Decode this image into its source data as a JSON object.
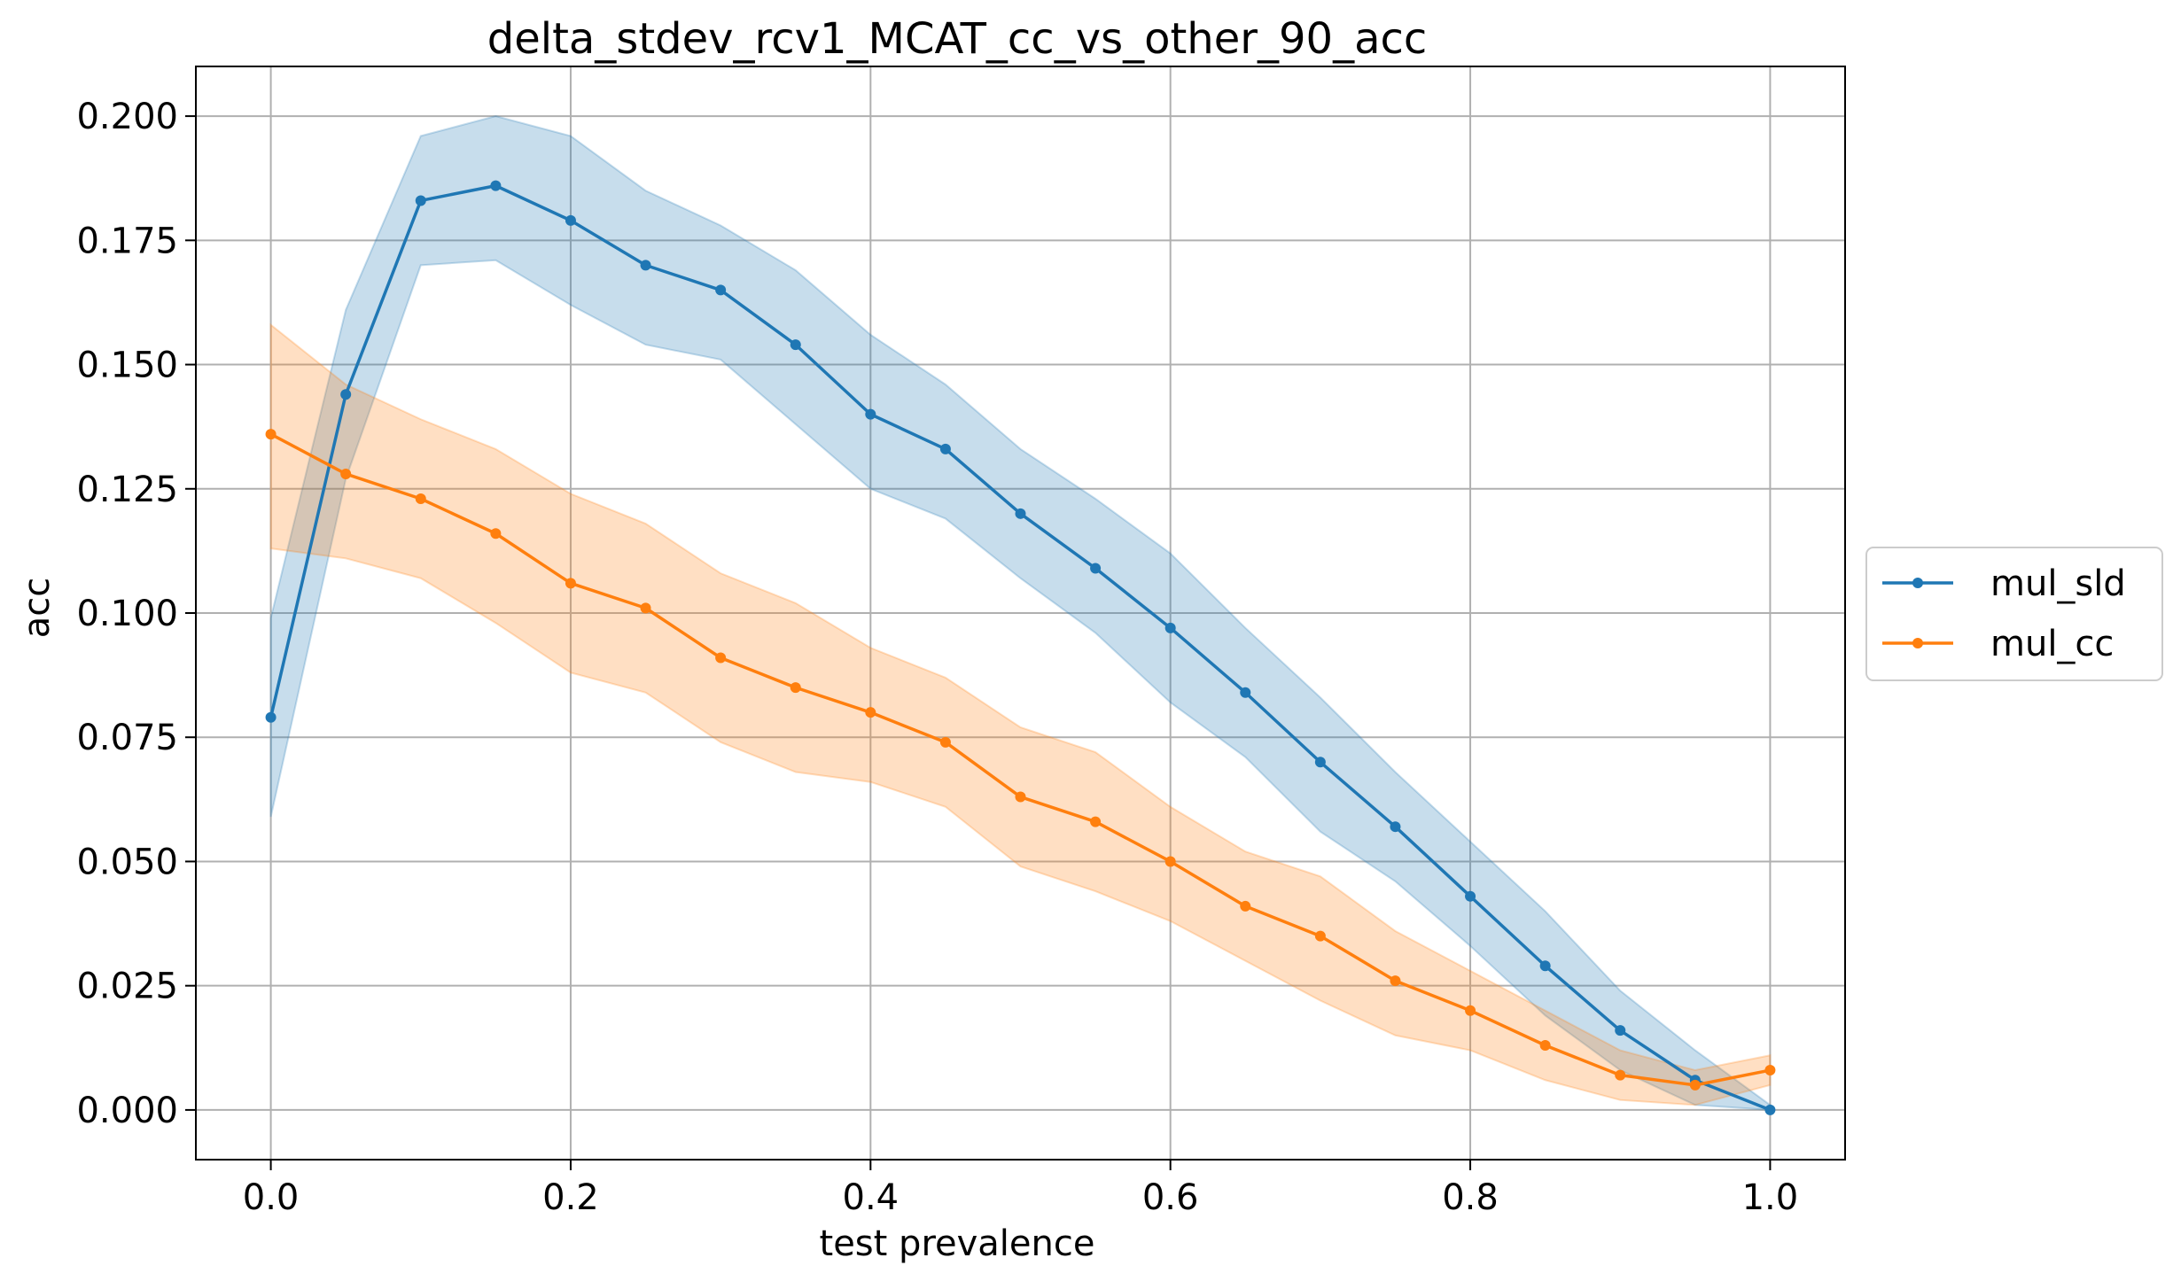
{
  "chart_data": {
    "type": "line",
    "title": "delta_stdev_rcv1_MCAT_cc_vs_other_90_acc",
    "xlabel": "test prevalence",
    "ylabel": "acc",
    "xlim": [
      -0.05,
      1.05
    ],
    "ylim": [
      -0.01,
      0.21
    ],
    "xticks": [
      0.0,
      0.2,
      0.4,
      0.6,
      0.8,
      1.0
    ],
    "xtick_labels": [
      "0.0",
      "0.2",
      "0.4",
      "0.6",
      "0.8",
      "1.0"
    ],
    "yticks": [
      0.0,
      0.025,
      0.05,
      0.075,
      0.1,
      0.125,
      0.15,
      0.175,
      0.2
    ],
    "ytick_labels": [
      "0.000",
      "0.025",
      "0.050",
      "0.075",
      "0.100",
      "0.125",
      "0.150",
      "0.175",
      "0.200"
    ],
    "grid": true,
    "legend_position": "right, outside",
    "x": [
      0.0,
      0.05,
      0.1,
      0.15,
      0.2,
      0.25,
      0.3,
      0.35,
      0.4,
      0.45,
      0.5,
      0.55,
      0.6,
      0.65,
      0.7,
      0.75,
      0.8,
      0.85,
      0.9,
      0.95,
      1.0
    ],
    "series": [
      {
        "name": "mul_sld",
        "color": "#1f77b4",
        "values": [
          0.079,
          0.144,
          0.183,
          0.186,
          0.179,
          0.17,
          0.165,
          0.154,
          0.14,
          0.133,
          0.12,
          0.109,
          0.097,
          0.084,
          0.07,
          0.057,
          0.043,
          0.029,
          0.016,
          0.006,
          0.0
        ],
        "band_upper": [
          0.099,
          0.161,
          0.196,
          0.2,
          0.196,
          0.185,
          0.178,
          0.169,
          0.156,
          0.146,
          0.133,
          0.123,
          0.112,
          0.097,
          0.083,
          0.068,
          0.054,
          0.04,
          0.024,
          0.012,
          0.001
        ],
        "band_lower": [
          0.059,
          0.127,
          0.17,
          0.171,
          0.162,
          0.154,
          0.151,
          0.138,
          0.125,
          0.119,
          0.107,
          0.096,
          0.082,
          0.071,
          0.056,
          0.046,
          0.033,
          0.019,
          0.008,
          0.001,
          0.0
        ]
      },
      {
        "name": "mul_cc",
        "color": "#ff7f0e",
        "values": [
          0.136,
          0.128,
          0.123,
          0.116,
          0.106,
          0.101,
          0.091,
          0.085,
          0.08,
          0.074,
          0.063,
          0.058,
          0.05,
          0.041,
          0.035,
          0.026,
          0.02,
          0.013,
          0.007,
          0.005,
          0.008
        ],
        "band_upper": [
          0.158,
          0.146,
          0.139,
          0.133,
          0.124,
          0.118,
          0.108,
          0.102,
          0.093,
          0.087,
          0.077,
          0.072,
          0.061,
          0.052,
          0.047,
          0.036,
          0.028,
          0.02,
          0.012,
          0.008,
          0.011
        ],
        "band_lower": [
          0.113,
          0.111,
          0.107,
          0.098,
          0.088,
          0.084,
          0.074,
          0.068,
          0.066,
          0.061,
          0.049,
          0.044,
          0.038,
          0.03,
          0.022,
          0.015,
          0.012,
          0.006,
          0.002,
          0.001,
          0.005
        ]
      }
    ]
  }
}
